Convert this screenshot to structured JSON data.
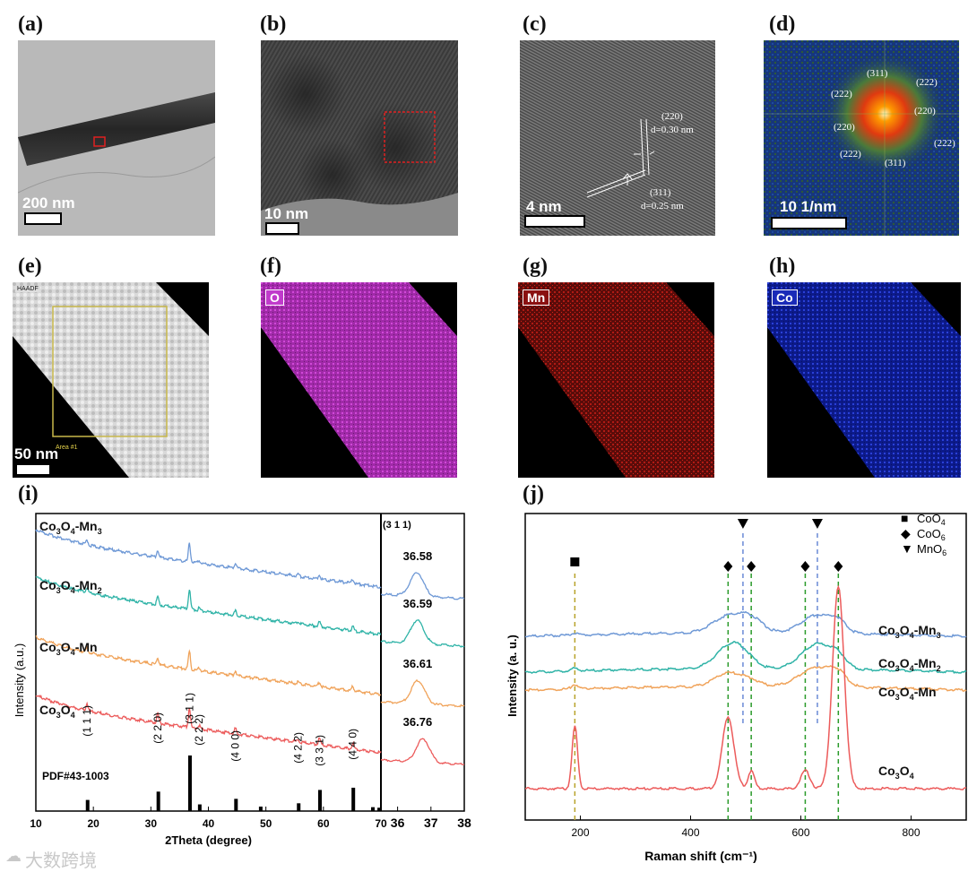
{
  "panels": {
    "a": {
      "label": "(a)",
      "scale": "200 nm"
    },
    "b": {
      "label": "(b)",
      "scale": "10 nm"
    },
    "c": {
      "label": "(c)",
      "scale": "4 nm",
      "plane1": "(220)",
      "d1": "d=0.30 nm",
      "plane2": "(311)",
      "d2": "d=0.25 nm"
    },
    "d": {
      "label": "(d)",
      "scale": "10 1/nm",
      "spots": [
        "(311)",
        "(222)",
        "(222)",
        "(220)",
        "(220)",
        "(222)",
        "(222)",
        "(311)"
      ]
    },
    "e": {
      "label": "(e)",
      "scale": "50 nm",
      "tag": "HAADF",
      "area": "Area #1"
    },
    "f": {
      "label": "(f)",
      "element": "O"
    },
    "g": {
      "label": "(g)",
      "element": "Mn"
    },
    "h": {
      "label": "(h)",
      "element": "Co"
    },
    "i": {
      "label": "(i)"
    },
    "j": {
      "label": "(j)"
    }
  },
  "watermark": "大数跨境",
  "chart_data": [
    {
      "type": "line",
      "panel": "i",
      "xlabel": "2Theta (degree)",
      "ylabel": "Intensity (a.u.)",
      "xlim": [
        10,
        70
      ],
      "xticks": [
        "10",
        "20",
        "30",
        "40",
        "50",
        "60",
        "70"
      ],
      "series": [
        {
          "name": "Co3O4-Mn3",
          "color": "#6f99d6"
        },
        {
          "name": "Co3O4-Mn2",
          "color": "#2fb3a7"
        },
        {
          "name": "Co3O4-Mn",
          "color": "#f0a35a"
        },
        {
          "name": "Co3O4",
          "color": "#ec5b5b"
        }
      ],
      "peaks": [
        18.9,
        31.2,
        36.7,
        38.4,
        44.7,
        55.6,
        59.3,
        65.1
      ],
      "hkl": [
        "(1 1 1)",
        "(2 2 0)",
        "(3 1 1)",
        "(2 2 2)",
        "(4 0 0)",
        "(4 2 2)",
        "(3 3 1)",
        "(4 4 0)"
      ],
      "reference": {
        "name": "PDF#43-1003",
        "positions": [
          19.0,
          31.3,
          36.8,
          38.5,
          44.8,
          49.1,
          55.7,
          59.4,
          65.2,
          68.6,
          69.7
        ],
        "intensities": [
          0.2,
          0.35,
          1.0,
          0.12,
          0.22,
          0.08,
          0.14,
          0.38,
          0.42,
          0.07,
          0.06
        ]
      },
      "inset": {
        "title": "(3 1 1)",
        "xlim": [
          35.5,
          38
        ],
        "xticks": [
          "36",
          "37",
          "38"
        ],
        "peak_positions": [
          36.58,
          36.59,
          36.61,
          36.76
        ],
        "peak_labels": [
          "36.58",
          "36.59",
          "36.61",
          "36.76"
        ]
      }
    },
    {
      "type": "line",
      "panel": "j",
      "xlabel": "Raman shift (cm⁻¹)",
      "ylabel": "Intensity (a. u.)",
      "xlim": [
        100,
        900
      ],
      "xticks": [
        "200",
        "400",
        "600",
        "800"
      ],
      "series": [
        {
          "name": "Co3O4-Mn3",
          "color": "#6f99d6"
        },
        {
          "name": "Co3O4-Mn2",
          "color": "#2fb3a7"
        },
        {
          "name": "Co3O4-Mn",
          "color": "#f0a35a"
        },
        {
          "name": "Co3O4",
          "color": "#ec5b5b"
        }
      ],
      "bands_co3o4": [
        190,
        468,
        510,
        608,
        668
      ],
      "bands_mno6": [
        495,
        630
      ],
      "legend": [
        {
          "symbol": "■",
          "label": "CoO4"
        },
        {
          "symbol": "◆",
          "label": "CoO6"
        },
        {
          "symbol": "▼",
          "label": "MnO6"
        }
      ]
    }
  ]
}
